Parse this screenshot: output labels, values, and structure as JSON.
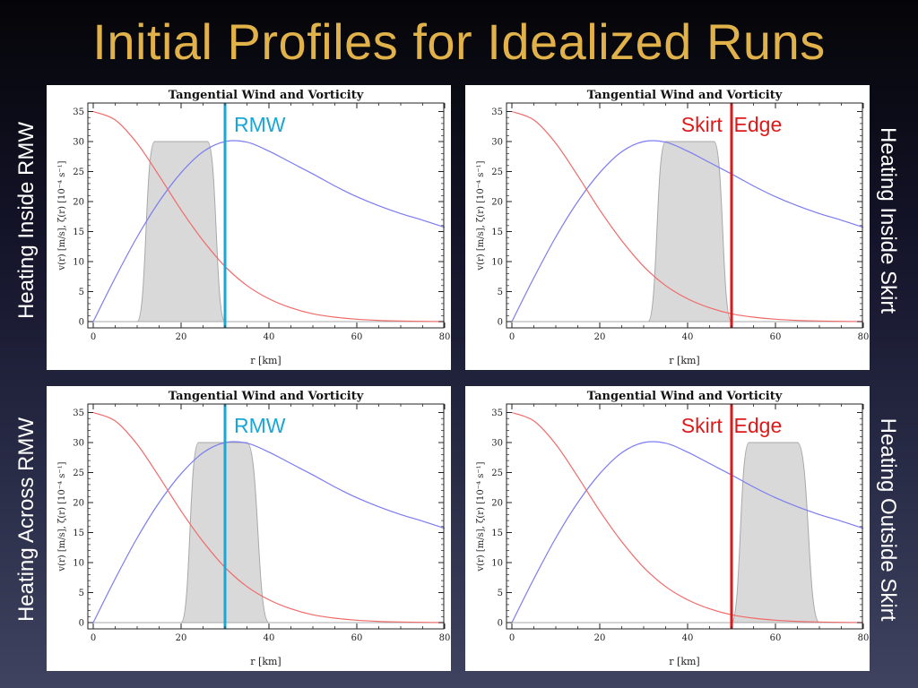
{
  "slide": {
    "title": "Initial Profiles for Idealized Runs",
    "side_labels": {
      "top_left": "Heating Inside RMW",
      "bottom_left": "Heating Across RMW",
      "top_right": "Heating Inside Skirt",
      "bottom_right": "Heating Outside Skirt"
    }
  },
  "colors": {
    "title": "#e2b24a",
    "wind": "#7c7cf0",
    "vorticity": "#f06a6a",
    "heating_fill": "#d9d9d9",
    "heating_edge": "#a8a8a8",
    "rmw_line": "#1aa7d6",
    "skirt_line": "#dd1a1a"
  },
  "chart_data": [
    {
      "type": "line",
      "title": "Tangential Wind and Vorticity",
      "xlabel": "r [km]",
      "ylabel": "v(r) [m/s], ζ(r) [10⁻⁴ s⁻¹]",
      "xlim": [
        0,
        80
      ],
      "ylim": [
        0,
        35
      ],
      "xticks": [
        "0",
        "20",
        "40",
        "60",
        "80"
      ],
      "yticks": [
        "0",
        "5",
        "10",
        "15",
        "20",
        "25",
        "30",
        "35"
      ],
      "x": [
        0,
        5,
        10,
        15,
        20,
        25,
        30,
        35,
        40,
        45,
        50,
        55,
        60,
        65,
        70,
        75,
        80
      ],
      "series": [
        {
          "values": [
            0,
            7.3,
            14.1,
            20.0,
            24.8,
            28.3,
            30.0,
            29.9,
            28.4,
            26.5,
            24.6,
            22.6,
            20.8,
            19.3,
            18.0,
            16.9,
            15.7
          ]
        },
        {
          "values": [
            35.0,
            33.6,
            29.7,
            24.3,
            18.6,
            13.5,
            9.2,
            6.0,
            3.8,
            2.3,
            1.3,
            0.75,
            0.4,
            0.2,
            0.1,
            0.05,
            0.0
          ]
        }
      ],
      "heating_band": {
        "range": [
          10,
          30
        ],
        "plateau": [
          14,
          26
        ],
        "level": 30
      },
      "vertical_line": {
        "x": 30,
        "label": "RMW",
        "kind": "rmw"
      }
    },
    {
      "type": "line",
      "title": "Tangential Wind and Vorticity",
      "xlabel": "r [km]",
      "ylabel": "v(r) [m/s], ζ(r) [10⁻⁴ s⁻¹]",
      "xlim": [
        0,
        80
      ],
      "ylim": [
        0,
        35
      ],
      "xticks": [
        "0",
        "20",
        "40",
        "60",
        "80"
      ],
      "yticks": [
        "0",
        "5",
        "10",
        "15",
        "20",
        "25",
        "30",
        "35"
      ],
      "x": [
        0,
        5,
        10,
        15,
        20,
        25,
        30,
        35,
        40,
        45,
        50,
        55,
        60,
        65,
        70,
        75,
        80
      ],
      "series": [
        {
          "values": [
            0,
            7.3,
            14.1,
            20.0,
            24.8,
            28.3,
            30.0,
            29.9,
            28.4,
            26.5,
            24.6,
            22.6,
            20.8,
            19.3,
            18.0,
            16.9,
            15.7
          ]
        },
        {
          "values": [
            35.0,
            33.6,
            29.7,
            24.3,
            18.6,
            13.5,
            9.2,
            6.0,
            3.8,
            2.3,
            1.3,
            0.75,
            0.4,
            0.2,
            0.1,
            0.05,
            0.0
          ]
        }
      ],
      "heating_band": {
        "range": [
          31,
          50
        ],
        "plateau": [
          35,
          46
        ],
        "level": 30
      },
      "vertical_line": {
        "x": 50,
        "label": "Skirt  Edge",
        "kind": "skirt"
      }
    },
    {
      "type": "line",
      "title": "Tangential Wind and Vorticity",
      "xlabel": "r [km]",
      "ylabel": "v(r) [m/s], ζ(r) [10⁻⁴ s⁻¹]",
      "xlim": [
        0,
        80
      ],
      "ylim": [
        0,
        35
      ],
      "xticks": [
        "0",
        "20",
        "40",
        "60",
        "80"
      ],
      "yticks": [
        "0",
        "5",
        "10",
        "15",
        "20",
        "25",
        "30",
        "35"
      ],
      "x": [
        0,
        5,
        10,
        15,
        20,
        25,
        30,
        35,
        40,
        45,
        50,
        55,
        60,
        65,
        70,
        75,
        80
      ],
      "series": [
        {
          "values": [
            0,
            7.3,
            14.1,
            20.0,
            24.8,
            28.3,
            30.0,
            29.9,
            28.4,
            26.5,
            24.6,
            22.6,
            20.8,
            19.3,
            18.0,
            16.9,
            15.7
          ]
        },
        {
          "values": [
            35.0,
            33.6,
            29.7,
            24.3,
            18.6,
            13.5,
            9.2,
            6.0,
            3.8,
            2.3,
            1.3,
            0.75,
            0.4,
            0.2,
            0.1,
            0.05,
            0.0
          ]
        }
      ],
      "heating_band": {
        "range": [
          20,
          40
        ],
        "plateau": [
          24,
          35
        ],
        "level": 30
      },
      "vertical_line": {
        "x": 30,
        "label": "RMW",
        "kind": "rmw"
      }
    },
    {
      "type": "line",
      "title": "Tangential Wind and Vorticity",
      "xlabel": "r [km]",
      "ylabel": "v(r) [m/s], ζ(r) [10⁻⁴ s⁻¹]",
      "xlim": [
        0,
        80
      ],
      "ylim": [
        0,
        35
      ],
      "xticks": [
        "0",
        "20",
        "40",
        "60",
        "80"
      ],
      "yticks": [
        "0",
        "5",
        "10",
        "15",
        "20",
        "25",
        "30",
        "35"
      ],
      "x": [
        0,
        5,
        10,
        15,
        20,
        25,
        30,
        35,
        40,
        45,
        50,
        55,
        60,
        65,
        70,
        75,
        80
      ],
      "series": [
        {
          "values": [
            0,
            7.3,
            14.1,
            20.0,
            24.8,
            28.3,
            30.0,
            29.9,
            28.4,
            26.5,
            24.6,
            22.6,
            20.8,
            19.3,
            18.0,
            16.9,
            15.7
          ]
        },
        {
          "values": [
            35.0,
            33.6,
            29.7,
            24.3,
            18.6,
            13.5,
            9.2,
            6.0,
            3.8,
            2.3,
            1.3,
            0.75,
            0.4,
            0.2,
            0.1,
            0.05,
            0.0
          ]
        }
      ],
      "heating_band": {
        "range": [
          50,
          70
        ],
        "plateau": [
          54,
          65
        ],
        "level": 30
      },
      "vertical_line": {
        "x": 50,
        "label": "Skirt  Edge",
        "kind": "skirt"
      }
    }
  ]
}
